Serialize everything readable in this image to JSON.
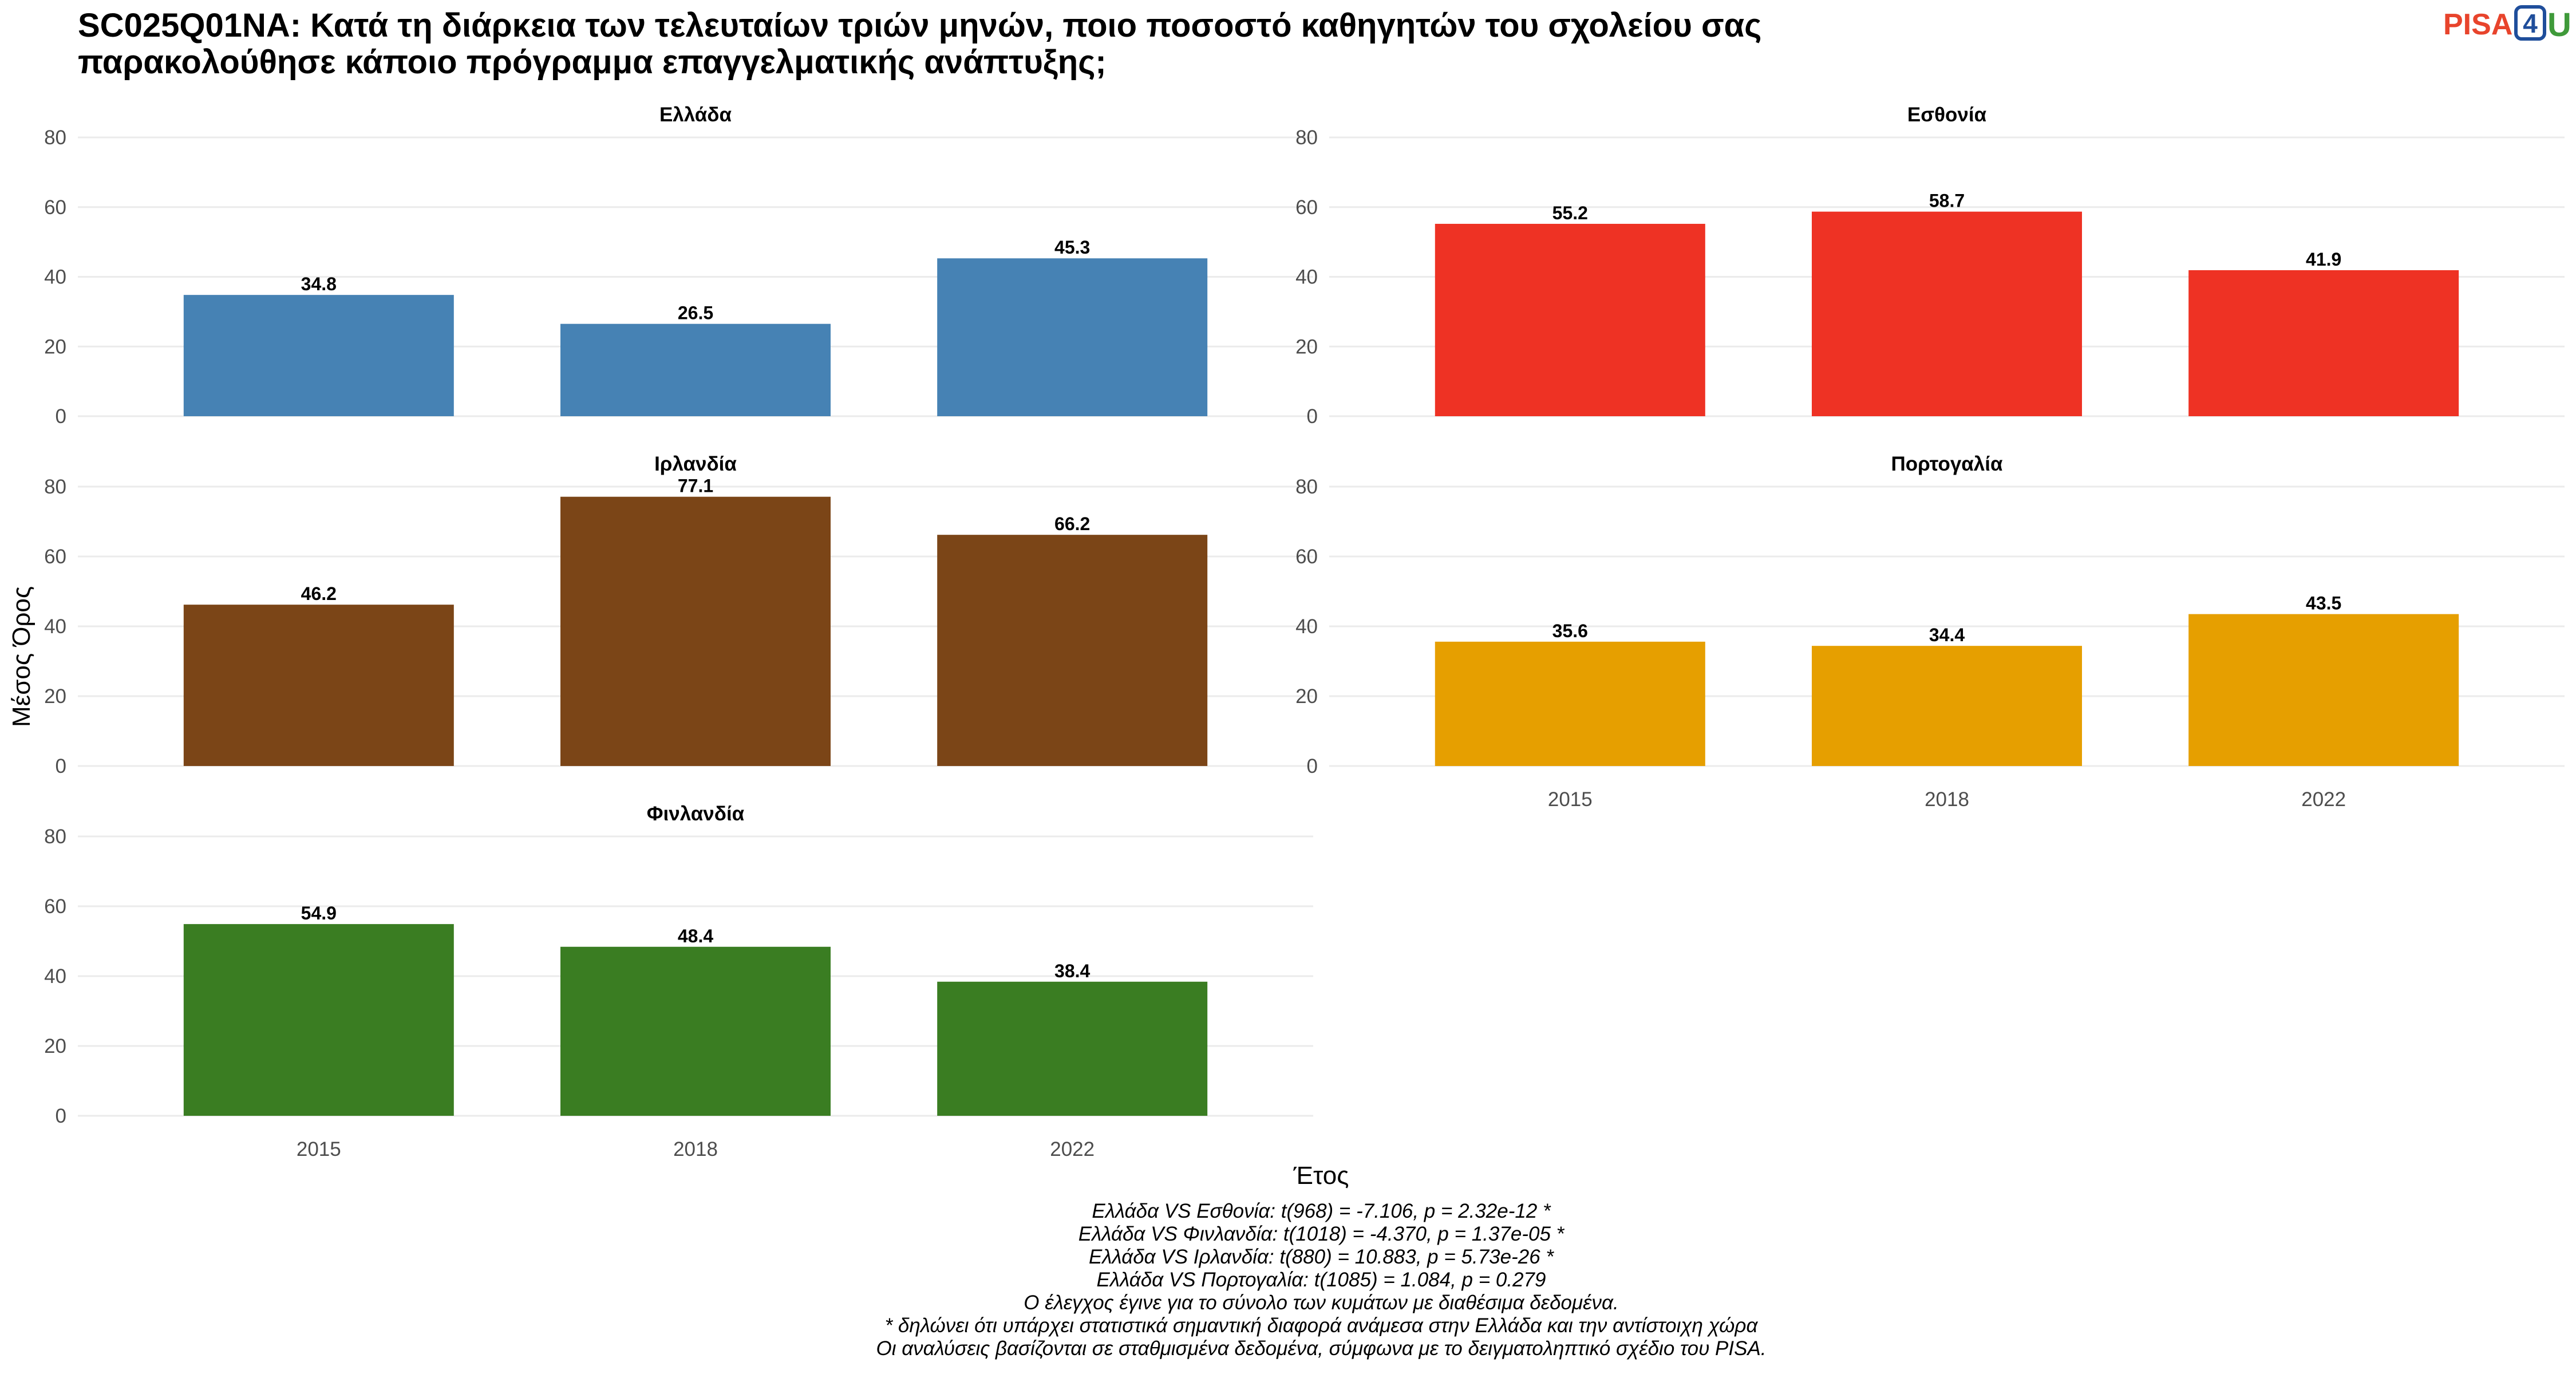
{
  "title_lines": [
    "SC025Q01NA: Κατά τη διάρκεια των τελευταίων τριών μηνών, ποιο ποσοστό καθηγητών του σχολείου σας",
    "παρακολούθησε κάποιο πρόγραμμα επαγγελματικής ανάπτυξης;"
  ],
  "logo": {
    "pisa": "PISA",
    "four": "4",
    "u": "U",
    "colors": {
      "pisa": "#e8442c",
      "four": "#1f4e9b",
      "u": "#3f9a3a"
    }
  },
  "chart_data": {
    "type": "bar",
    "layout": "facet-grid",
    "xlabel": "Έτος",
    "ylabel": "Μέσος Όρος",
    "categories": [
      "2015",
      "2018",
      "2022"
    ],
    "ylim": [
      0,
      80
    ],
    "yticks": [
      0,
      20,
      40,
      60,
      80
    ],
    "grid": true,
    "panels": [
      {
        "name": "Ελλάδα",
        "color": "#4682b4",
        "values": [
          34.8,
          26.5,
          45.3
        ],
        "labels": [
          "34.8",
          "26.5",
          "45.3"
        ],
        "show_x_ticks": false
      },
      {
        "name": "Εσθονία",
        "color": "#ee3224",
        "values": [
          55.2,
          58.7,
          41.9
        ],
        "labels": [
          "55.2",
          "58.7",
          "41.9"
        ],
        "show_x_ticks": false
      },
      {
        "name": "Ιρλανδία",
        "color": "#7b4517",
        "values": [
          46.2,
          77.1,
          66.2
        ],
        "labels": [
          "46.2",
          "77.1",
          "66.2"
        ],
        "show_x_ticks": false
      },
      {
        "name": "Πορτογαλία",
        "color": "#e69f00",
        "values": [
          35.6,
          34.4,
          43.5
        ],
        "labels": [
          "35.6",
          "34.4",
          "43.5"
        ],
        "show_x_ticks": true
      },
      {
        "name": "Φινλανδία",
        "color": "#3a7d22",
        "values": [
          54.9,
          48.4,
          38.4
        ],
        "labels": [
          "54.9",
          "48.4",
          "38.4"
        ],
        "show_x_ticks": true
      }
    ]
  },
  "caption_lines": [
    "Ελλάδα VS Εσθονία: t(968) = -7.106, p = 2.32e-12 *",
    "Ελλάδα VS Φινλανδία: t(1018) = -4.370, p = 1.37e-05 *",
    "Ελλάδα VS Ιρλανδία: t(880) = 10.883, p = 5.73e-26 *",
    "Ελλάδα VS Πορτογαλία: t(1085) = 1.084, p = 0.279",
    "Ο έλεγχος έγινε για το σύνολο των κυμάτων με διαθέσιμα δεδομένα.",
    "* δηλώνει ότι υπάρχει στατιστικά σημαντική διαφορά ανάμεσα στην Ελλάδα και την αντίστοιχη χώρα",
    "Οι αναλύσεις βασίζονται σε σταθμισμένα δεδομένα, σύμφωνα με το δειγματοληπτικό σχέδιο του PISA."
  ]
}
